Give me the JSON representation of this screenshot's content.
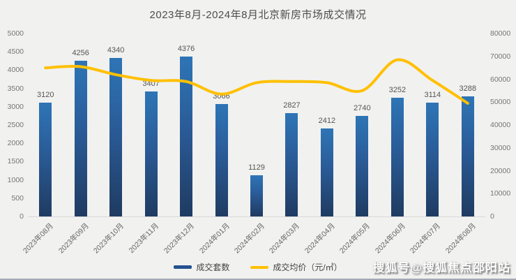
{
  "chart_data": {
    "type": "bar",
    "title": "2023年8月-2024年8月北京新房市场成交情况",
    "categories": [
      "2023年08月",
      "2023年09月",
      "2023年10月",
      "2023年11月",
      "2023年12月",
      "2024年01月",
      "2024年02月",
      "2024年03月",
      "2024年04月",
      "2024年05月",
      "2024年06月",
      "2024年07月",
      "2024年08月"
    ],
    "series": [
      {
        "name": "成交套数",
        "type": "bar",
        "axis": "left",
        "values": [
          3120,
          4256,
          4340,
          3407,
          4376,
          3066,
          1129,
          2827,
          2412,
          2740,
          3252,
          3114,
          3288
        ]
      },
      {
        "name": "成交均价（元/㎡）",
        "type": "line",
        "axis": "right",
        "values": [
          65000,
          65500,
          62000,
          59500,
          59000,
          53500,
          58500,
          59000,
          58500,
          55000,
          68500,
          59500,
          49500
        ]
      }
    ],
    "axes": {
      "left": {
        "min": 0,
        "max": 5000,
        "step": 500
      },
      "right": {
        "min": 0,
        "max": 80000,
        "step": 10000
      }
    },
    "grid": false,
    "legend_position": "bottom"
  },
  "legend": {
    "bars": "成交套数",
    "line": "成交均价（元/㎡）"
  },
  "watermark": {
    "text": "搜狐号@搜狐焦点邵阳站"
  },
  "colors": {
    "bar_top": "#2E75B6",
    "bar_bottom": "#1F3B61",
    "line": "#FFC000",
    "background": "#F1F1F0",
    "label": "#555555"
  }
}
